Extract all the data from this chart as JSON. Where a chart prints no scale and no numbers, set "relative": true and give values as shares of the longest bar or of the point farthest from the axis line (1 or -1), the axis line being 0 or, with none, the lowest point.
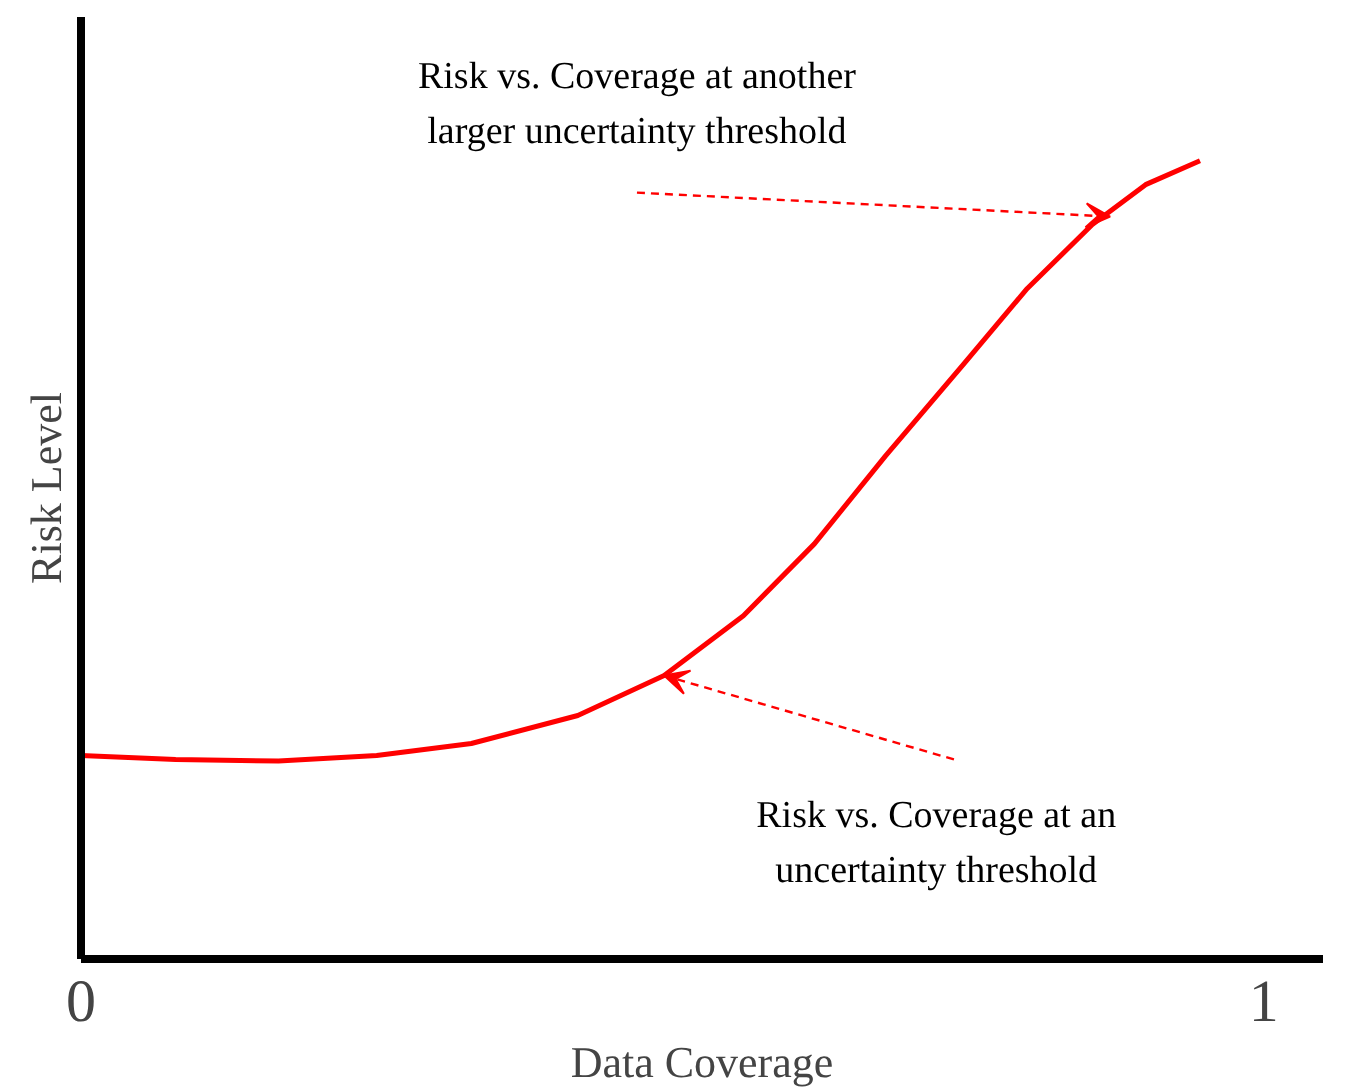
{
  "chart_data": {
    "type": "line",
    "relative": true,
    "xlabel": "Data Coverage",
    "ylabel": "Risk Level",
    "xlim": [
      0,
      1.05
    ],
    "xticks": [
      0,
      1
    ],
    "grid": false,
    "marker": "none",
    "line_style": "solid",
    "series": [
      {
        "color": "#ff0000",
        "x": [
          0,
          0.08,
          0.167,
          0.25,
          0.33,
          0.42,
          0.493,
          0.56,
          0.62,
          0.68,
          0.746,
          0.8,
          0.855,
          0.9,
          0.946
        ],
        "values": [
          0.255,
          0.25,
          0.248,
          0.255,
          0.27,
          0.305,
          0.355,
          0.43,
          0.52,
          0.63,
          0.745,
          0.84,
          0.92,
          0.97,
          1.0
        ]
      }
    ],
    "annotations": [
      {
        "text": "Risk vs. Coverage at another\nlarger uncertainty threshold",
        "x": 0.87,
        "y": 0.93
      },
      {
        "text": "Risk vs. Coverage at an\nuncertainty threshold",
        "x": 0.493,
        "y": 0.355
      }
    ]
  }
}
